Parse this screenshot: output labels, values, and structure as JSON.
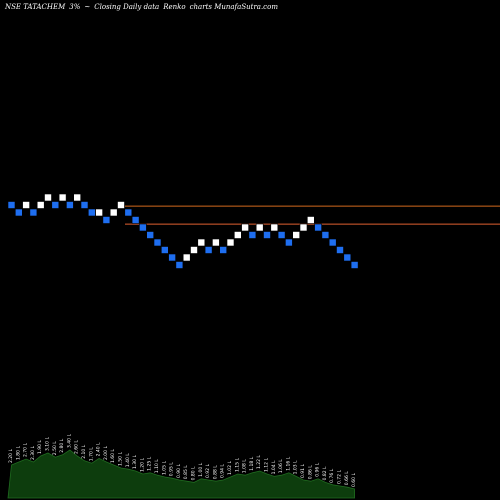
{
  "header": {
    "symbol": "NSE TATACHEM",
    "box_size": "3%",
    "separator": "~",
    "description": "Closing Daily data",
    "chart_kind": "Renko",
    "site": "charts MunafaSutra.com"
  },
  "colors": {
    "background": "#000000",
    "up_brick": "#ffffff",
    "down_brick": "#1e6ef0",
    "upper_line": "#d2691e",
    "lower_line": "#e06030",
    "volume_fill": "#0d3d0d",
    "volume_text": "#ffffff"
  },
  "chart_data": {
    "type": "renko",
    "bricks": [
      {
        "row": 0,
        "dir": "down"
      },
      {
        "row": 1,
        "dir": "down"
      },
      {
        "row": 0,
        "dir": "up"
      },
      {
        "row": 1,
        "dir": "down"
      },
      {
        "row": 0,
        "dir": "up"
      },
      {
        "row": -1,
        "dir": "up"
      },
      {
        "row": 0,
        "dir": "down"
      },
      {
        "row": -1,
        "dir": "up"
      },
      {
        "row": 0,
        "dir": "down"
      },
      {
        "row": -1,
        "dir": "up"
      },
      {
        "row": 0,
        "dir": "down"
      },
      {
        "row": 1,
        "dir": "down"
      },
      {
        "row": 1,
        "dir": "up"
      },
      {
        "row": 2,
        "dir": "down"
      },
      {
        "row": 1,
        "dir": "up"
      },
      {
        "row": 0,
        "dir": "up"
      },
      {
        "row": 1,
        "dir": "down"
      },
      {
        "row": 2,
        "dir": "down"
      },
      {
        "row": 3,
        "dir": "down"
      },
      {
        "row": 4,
        "dir": "down"
      },
      {
        "row": 5,
        "dir": "down"
      },
      {
        "row": 6,
        "dir": "down"
      },
      {
        "row": 7,
        "dir": "down"
      },
      {
        "row": 8,
        "dir": "down"
      },
      {
        "row": 7,
        "dir": "up"
      },
      {
        "row": 6,
        "dir": "up"
      },
      {
        "row": 5,
        "dir": "up"
      },
      {
        "row": 6,
        "dir": "down"
      },
      {
        "row": 5,
        "dir": "up"
      },
      {
        "row": 6,
        "dir": "down"
      },
      {
        "row": 5,
        "dir": "up"
      },
      {
        "row": 4,
        "dir": "up"
      },
      {
        "row": 3,
        "dir": "up"
      },
      {
        "row": 4,
        "dir": "down"
      },
      {
        "row": 3,
        "dir": "up"
      },
      {
        "row": 4,
        "dir": "down"
      },
      {
        "row": 3,
        "dir": "up"
      },
      {
        "row": 4,
        "dir": "down"
      },
      {
        "row": 5,
        "dir": "down"
      },
      {
        "row": 4,
        "dir": "up"
      },
      {
        "row": 3,
        "dir": "up"
      },
      {
        "row": 2,
        "dir": "up"
      },
      {
        "row": 3,
        "dir": "down"
      },
      {
        "row": 4,
        "dir": "down"
      },
      {
        "row": 5,
        "dir": "down"
      },
      {
        "row": 6,
        "dir": "down"
      },
      {
        "row": 7,
        "dir": "down"
      },
      {
        "row": 8,
        "dir": "down"
      }
    ],
    "reference_lines": [
      {
        "name": "upper",
        "row": 0.15
      },
      {
        "name": "lower",
        "row": 2.55
      }
    ],
    "volume": [
      0.55,
      0.6,
      0.65,
      0.6,
      0.7,
      0.75,
      0.68,
      0.72,
      0.8,
      0.7,
      0.62,
      0.58,
      0.66,
      0.6,
      0.55,
      0.5,
      0.48,
      0.45,
      0.4,
      0.42,
      0.38,
      0.35,
      0.33,
      0.3,
      0.28,
      0.26,
      0.32,
      0.3,
      0.28,
      0.3,
      0.35,
      0.4,
      0.38,
      0.42,
      0.45,
      0.4,
      0.36,
      0.38,
      0.42,
      0.36,
      0.3,
      0.28,
      0.32,
      0.26,
      0.22,
      0.2,
      0.18,
      0.15
    ],
    "volume_labels": [
      "2.20 L",
      "1.80 L",
      "2.70 L",
      "2.30 L",
      "1.90 L",
      "3.10 L",
      "2.50 L",
      "2.80 L",
      "3.40 L",
      "2.60 L",
      "2.10 L",
      "1.70 L",
      "2.40 L",
      "2.00 L",
      "1.60 L",
      "1.50 L",
      "1.40 L",
      "1.30 L",
      "1.20 L",
      "1.25 L",
      "1.10 L",
      "1.05 L",
      "0.95 L",
      "0.90 L",
      "0.85 L",
      "0.80 L",
      "1.00 L",
      "0.92 L",
      "0.88 L",
      "0.94 L",
      "1.02 L",
      "1.15 L",
      "1.08 L",
      "1.18 L",
      "1.22 L",
      "1.12 L",
      "1.04 L",
      "1.06 L",
      "1.16 L",
      "1.03 L",
      "0.91 L",
      "0.86 L",
      "0.96 L",
      "0.82 L",
      "0.76 L",
      "0.72 L",
      "0.66 L",
      "0.60 L"
    ]
  }
}
